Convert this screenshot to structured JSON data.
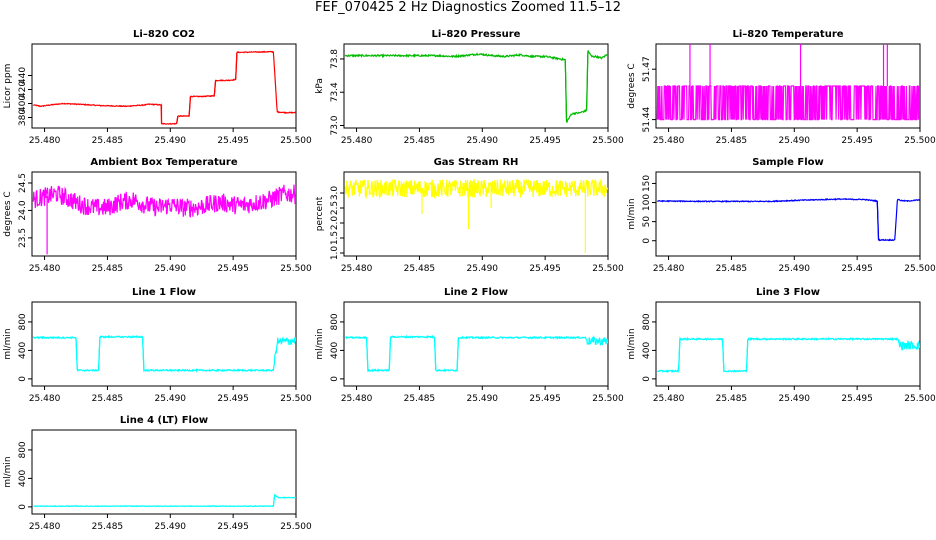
{
  "main_title": "FEF_070425  2 Hz Diagnostics Zoomed 11.5–12",
  "chart_data": [
    {
      "type": "line",
      "title": "Li–820 CO2",
      "ylabel": "Licor ppm",
      "color": "#ff0000",
      "xlim": [
        25.479,
        25.5
      ],
      "ylim": [
        365,
        485
      ],
      "xticks": [
        25.48,
        25.485,
        25.49,
        25.495,
        25.5
      ],
      "xtick_labels": [
        "25.480",
        "25.485",
        "25.490",
        "25.495",
        "25.500"
      ],
      "yticks": [
        380,
        400,
        420,
        440
      ],
      "ytick_labels": [
        "380",
        "400",
        "420",
        "440"
      ],
      "noise": 0.6,
      "series": [
        {
          "x": [
            25.4791,
            25.4797,
            25.4805,
            25.4815,
            25.4826,
            25.4845,
            25.4865,
            25.488,
            25.4883,
            25.4893,
            25.4893,
            25.4905,
            25.4906,
            25.4915,
            25.4916,
            25.4925,
            25.4935,
            25.4936,
            25.4945,
            25.4952,
            25.4953,
            25.4982,
            25.4985,
            25.4991,
            25.5
          ],
          "y": [
            398,
            396,
            398,
            400,
            399,
            397,
            396,
            398,
            399,
            398,
            371,
            371,
            382,
            382,
            410,
            410,
            411,
            433,
            433,
            434,
            473,
            474,
            388,
            387,
            387
          ]
        }
      ]
    },
    {
      "type": "line",
      "title": "Li–820 Pressure",
      "ylabel": "kPa",
      "color": "#00bb00",
      "xlim": [
        25.479,
        25.5
      ],
      "ylim": [
        72.97,
        73.98
      ],
      "xticks": [
        25.48,
        25.485,
        25.49,
        25.495,
        25.5
      ],
      "xtick_labels": [
        "25.480",
        "25.485",
        "25.490",
        "25.495",
        "25.500"
      ],
      "yticks": [
        73.0,
        73.4,
        73.8
      ],
      "ytick_labels": [
        "73.0",
        "73.4",
        "73.8"
      ],
      "noise": 0.01,
      "series": [
        {
          "x": [
            25.4791,
            25.48,
            25.482,
            25.485,
            25.4865,
            25.4876,
            25.4885,
            25.4897,
            25.4908,
            25.4918,
            25.493,
            25.494,
            25.495,
            25.4962,
            25.4966,
            25.4967,
            25.4971,
            25.4975,
            25.4977,
            25.4983,
            25.4984,
            25.4987,
            25.499,
            25.4995,
            25.5
          ],
          "y": [
            73.84,
            73.84,
            73.84,
            73.84,
            73.84,
            73.83,
            73.84,
            73.86,
            73.84,
            73.83,
            73.85,
            73.83,
            73.83,
            73.8,
            73.79,
            73.04,
            73.14,
            73.15,
            73.15,
            73.18,
            73.9,
            73.83,
            73.83,
            73.81,
            73.86
          ]
        }
      ]
    },
    {
      "type": "line",
      "title": "Li–820 Temperature",
      "ylabel": "degrees C",
      "color": "#ff00ff",
      "xlim": [
        25.479,
        25.5
      ],
      "ylim": [
        51.435,
        51.485
      ],
      "xticks": [
        25.48,
        25.485,
        25.49,
        25.495,
        25.5
      ],
      "xtick_labels": [
        "25.480",
        "25.485",
        "25.490",
        "25.495",
        "25.500"
      ],
      "yticks": [
        51.44,
        51.47
      ],
      "ytick_labels": [
        "51.44",
        "51.47"
      ],
      "noise": 0,
      "toggle": [
        51.44,
        51.46
      ],
      "spikes": [
        [
          25.4817,
          51.485
        ],
        [
          25.4833,
          51.485
        ],
        [
          25.4905,
          51.485
        ],
        [
          25.4971,
          51.485
        ],
        [
          25.4974,
          51.485
        ]
      ],
      "series": [
        {
          "x": [
            25.4791,
            25.5
          ],
          "y": [
            51.46,
            51.46
          ]
        }
      ]
    },
    {
      "type": "line",
      "title": "Ambient Box Temperature",
      "ylabel": "degrees C",
      "color": "#ff00ff",
      "xlim": [
        25.479,
        25.5
      ],
      "ylim": [
        23.17,
        24.7
      ],
      "xticks": [
        25.48,
        25.485,
        25.49,
        25.495,
        25.5
      ],
      "xtick_labels": [
        "25.480",
        "25.485",
        "25.490",
        "25.495",
        "25.500"
      ],
      "yticks": [
        23.5,
        24.0,
        24.5
      ],
      "ytick_labels": [
        "23.5",
        "24.0",
        "24.5"
      ],
      "noise": 0.17,
      "spikes": [
        [
          25.4802,
          23.2
        ]
      ],
      "series": [
        {
          "x": [
            25.4791,
            25.48,
            25.481,
            25.482,
            25.483,
            25.484,
            25.485,
            25.486,
            25.487,
            25.488,
            25.489,
            25.49,
            25.491,
            25.492,
            25.493,
            25.494,
            25.495,
            25.496,
            25.497,
            25.498,
            25.499,
            25.5
          ],
          "y": [
            24.2,
            24.25,
            24.3,
            24.2,
            24.1,
            24.05,
            24.05,
            24.15,
            24.2,
            24.1,
            24.05,
            24.1,
            24.05,
            24.05,
            24.1,
            24.15,
            24.1,
            24.1,
            24.15,
            24.2,
            24.3,
            24.3
          ]
        }
      ]
    },
    {
      "type": "line",
      "title": "Gas Stream RH",
      "ylabel": "percent",
      "color": "#ffff00",
      "xlim": [
        25.479,
        25.5
      ],
      "ylim": [
        0.9,
        3.7
      ],
      "xticks": [
        25.48,
        25.485,
        25.49,
        25.495,
        25.5
      ],
      "xtick_labels": [
        "25.480",
        "25.485",
        "25.490",
        "25.495",
        "25.500"
      ],
      "yticks": [
        1.0,
        1.5,
        2.0,
        2.5,
        3.0
      ],
      "ytick_labels": [
        "1.0",
        "1.5",
        "2.0",
        "2.5",
        "3.0"
      ],
      "noise": 0.3,
      "spikes": [
        [
          25.4852,
          2.3
        ],
        [
          25.4889,
          1.8
        ],
        [
          25.4907,
          2.5
        ],
        [
          25.4982,
          1.0
        ]
      ],
      "series": [
        {
          "x": [
            25.4791,
            25.5
          ],
          "y": [
            3.15,
            3.15
          ]
        }
      ]
    },
    {
      "type": "line",
      "title": "Sample Flow",
      "ylabel": "ml/min",
      "color": "#0000ff",
      "xlim": [
        25.479,
        25.5
      ],
      "ylim": [
        -40,
        180
      ],
      "xticks": [
        25.48,
        25.485,
        25.49,
        25.495,
        25.5
      ],
      "xtick_labels": [
        "25.480",
        "25.485",
        "25.490",
        "25.495",
        "25.500"
      ],
      "yticks": [
        0,
        50,
        100,
        150
      ],
      "ytick_labels": [
        "0",
        "50",
        "100",
        "150"
      ],
      "noise": 1.2,
      "series": [
        {
          "x": [
            25.4791,
            25.483,
            25.488,
            25.4905,
            25.4935,
            25.4955,
            25.4966,
            25.4967,
            25.498,
            25.4982,
            25.4985,
            25.499,
            25.5
          ],
          "y": [
            104,
            103,
            103,
            106,
            109,
            108,
            104,
            2,
            2,
            109,
            105,
            104,
            107
          ]
        }
      ]
    },
    {
      "type": "line",
      "title": "Line 1 Flow",
      "ylabel": "ml/min",
      "color": "#00ffff",
      "xlim": [
        25.479,
        25.5
      ],
      "ylim": [
        -100,
        1080
      ],
      "xticks": [
        25.48,
        25.485,
        25.49,
        25.495,
        25.5
      ],
      "xtick_labels": [
        "25.480",
        "25.485",
        "25.490",
        "25.495",
        "25.500"
      ],
      "yticks": [
        0,
        400,
        800
      ],
      "ytick_labels": [
        "0",
        "400",
        "800"
      ],
      "noise": 10,
      "band_from": [
        25.4983,
        60
      ],
      "series": [
        {
          "x": [
            25.4791,
            25.4825,
            25.4826,
            25.4843,
            25.4844,
            25.4878,
            25.4879,
            25.4982,
            25.4985,
            25.5
          ],
          "y": [
            580,
            580,
            120,
            120,
            590,
            590,
            120,
            120,
            520,
            540
          ]
        }
      ]
    },
    {
      "type": "line",
      "title": "Line 2 Flow",
      "ylabel": "ml/min",
      "color": "#00ffff",
      "xlim": [
        25.479,
        25.5
      ],
      "ylim": [
        -100,
        1080
      ],
      "xticks": [
        25.48,
        25.485,
        25.49,
        25.495,
        25.5
      ],
      "xtick_labels": [
        "25.480",
        "25.485",
        "25.490",
        "25.495",
        "25.500"
      ],
      "yticks": [
        0,
        400,
        800
      ],
      "ytick_labels": [
        "0",
        "400",
        "800"
      ],
      "noise": 10,
      "band_from": [
        25.4983,
        60
      ],
      "series": [
        {
          "x": [
            25.4791,
            25.4808,
            25.4809,
            25.4826,
            25.4827,
            25.4862,
            25.4863,
            25.488,
            25.4881,
            25.4982,
            25.4984,
            25.5
          ],
          "y": [
            580,
            580,
            120,
            120,
            590,
            590,
            120,
            120,
            580,
            580,
            530,
            530
          ]
        }
      ]
    },
    {
      "type": "line",
      "title": "Line 3 Flow",
      "ylabel": "ml/min",
      "color": "#00ffff",
      "xlim": [
        25.479,
        25.5
      ],
      "ylim": [
        -100,
        1080
      ],
      "xticks": [
        25.48,
        25.485,
        25.49,
        25.495,
        25.5
      ],
      "xtick_labels": [
        "25.480",
        "25.485",
        "25.490",
        "25.495",
        "25.500"
      ],
      "yticks": [
        0,
        400,
        800
      ],
      "ytick_labels": [
        "0",
        "400",
        "800"
      ],
      "noise": 10,
      "band_from": [
        25.4983,
        60
      ],
      "series": [
        {
          "x": [
            25.4791,
            25.4808,
            25.4809,
            25.4843,
            25.4844,
            25.4862,
            25.4863,
            25.4982,
            25.4984,
            25.5
          ],
          "y": [
            110,
            110,
            560,
            560,
            110,
            110,
            560,
            560,
            470,
            470
          ]
        }
      ]
    },
    {
      "type": "line",
      "title": "Line 4 (LT) Flow",
      "ylabel": "ml/min",
      "color": "#00ffff",
      "xlim": [
        25.479,
        25.5
      ],
      "ylim": [
        -100,
        1080
      ],
      "xticks": [
        25.48,
        25.485,
        25.49,
        25.495,
        25.5
      ],
      "xtick_labels": [
        "25.480",
        "25.485",
        "25.490",
        "25.495",
        "25.500"
      ],
      "yticks": [
        0,
        400,
        800
      ],
      "ytick_labels": [
        "0",
        "400",
        "800"
      ],
      "noise": 4,
      "series": [
        {
          "x": [
            25.4791,
            25.4982,
            25.4983,
            25.4986,
            25.5
          ],
          "y": [
            10,
            10,
            170,
            130,
            130
          ]
        }
      ]
    }
  ]
}
